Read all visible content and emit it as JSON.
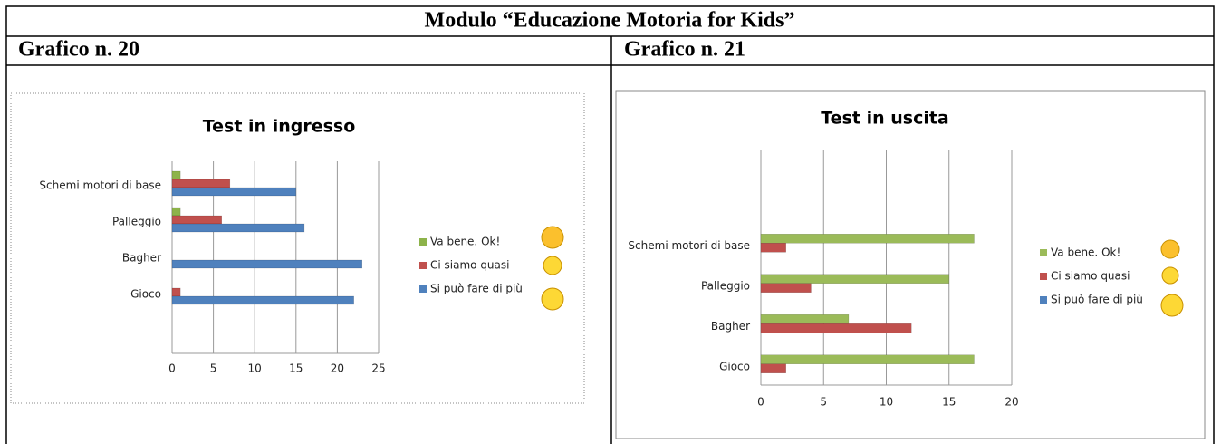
{
  "table": {
    "title": "Modulo “Educazione Motoria for Kids”",
    "headings": [
      "Grafico n. 20",
      "Grafico n. 21"
    ]
  },
  "chart_data": [
    {
      "type": "bar",
      "orientation": "horizontal",
      "title": "Test in ingresso",
      "categories": [
        "Schemi motori di base",
        "Palleggio",
        "Bagher",
        "Gioco"
      ],
      "series": [
        {
          "name": "Va bene. Ok!",
          "color": "#8db34a",
          "values": [
            1,
            1,
            0,
            0
          ]
        },
        {
          "name": "Ci siamo quasi",
          "color": "#c0504d",
          "values": [
            7,
            6,
            0,
            1
          ]
        },
        {
          "name": "Si può fare di più",
          "color": "#4f81bd",
          "values": [
            15,
            16,
            23,
            22
          ]
        }
      ],
      "xlim": [
        0,
        25
      ],
      "xticks": [
        0,
        5,
        10,
        15,
        20,
        25
      ],
      "grid": true,
      "legend": "right"
    },
    {
      "type": "bar",
      "orientation": "horizontal",
      "title": "Test in uscita",
      "categories": [
        "Schemi motori di base",
        "Palleggio",
        "Bagher",
        "Gioco"
      ],
      "series": [
        {
          "name": "Va bene. Ok!",
          "color": "#9bbb59",
          "values": [
            17,
            15,
            7,
            17
          ]
        },
        {
          "name": "Ci siamo quasi",
          "color": "#c0504d",
          "values": [
            2,
            4,
            12,
            2
          ]
        },
        {
          "name": "Si può fare di più",
          "color": "#4f81bd",
          "values": [
            0,
            0,
            0,
            0
          ]
        }
      ],
      "xlim": [
        0,
        20
      ],
      "xticks": [
        0,
        5,
        10,
        15,
        20
      ],
      "grid": true,
      "legend": "right"
    }
  ]
}
